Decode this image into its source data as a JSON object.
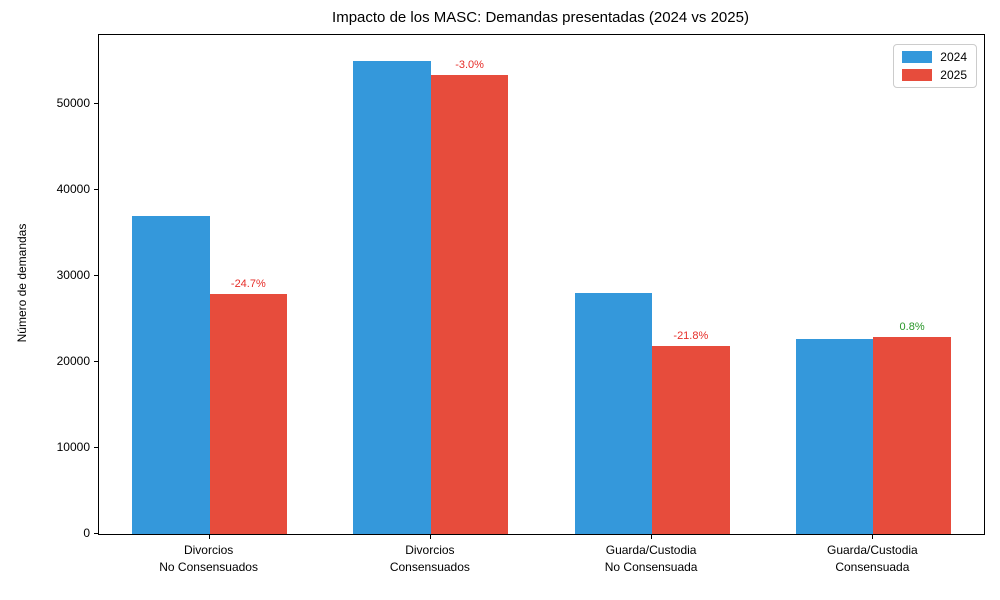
{
  "chart_data": {
    "type": "bar",
    "title": "Impacto de los MASC: Demandas presentadas (2024 vs 2025)",
    "xlabel": "",
    "ylabel": "Número de demandas",
    "categories": [
      "Divorcios\nNo Consensuados",
      "Divorcios\nConsensuados",
      "Guarda/Custodia\nNo Consensuada",
      "Guarda/Custodia\nConsensuada"
    ],
    "series": [
      {
        "name": "2024",
        "color": "#3498db",
        "values": [
          37000,
          55000,
          28000,
          22700
        ]
      },
      {
        "name": "2025",
        "color": "#e74c3c",
        "values": [
          27861,
          53350,
          21896,
          22882
        ]
      }
    ],
    "annotations": [
      {
        "text": "-24.7%",
        "color": "#e62d28"
      },
      {
        "text": "-3.0%",
        "color": "#e62d28"
      },
      {
        "text": "-21.8%",
        "color": "#e62d28"
      },
      {
        "text": "0.8%",
        "color": "#289628"
      }
    ],
    "yticks": [
      0,
      10000,
      20000,
      30000,
      40000,
      50000
    ],
    "ylim": [
      0,
      58000
    ],
    "grid": false,
    "legend_position": "upper right",
    "legend": [
      "2024",
      "2025"
    ]
  }
}
